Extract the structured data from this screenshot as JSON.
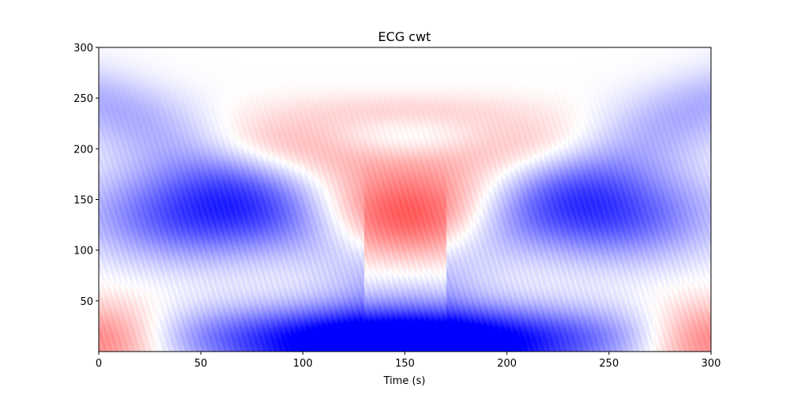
{
  "chart_data": {
    "type": "heatmap",
    "title": "ECG cwt",
    "xlabel": "Time (s)",
    "ylabel": "",
    "xlim": [
      0,
      300
    ],
    "ylim": [
      0,
      300
    ],
    "x_ticks": [
      0,
      50,
      100,
      150,
      200,
      250,
      300
    ],
    "x_tick_labels": [
      "0",
      "50",
      "100",
      "150",
      "200",
      "250",
      "300"
    ],
    "y_ticks": [
      50,
      100,
      150,
      200,
      250,
      300
    ],
    "y_tick_labels": [
      "50",
      "100",
      "150",
      "200",
      "250",
      "300"
    ],
    "colormap": "bwr",
    "colors": {
      "negative": "#0000ff",
      "zero": "#ffffff",
      "positive": "#ff0000"
    },
    "features": [
      {
        "sign": "negative",
        "t": 50,
        "scale": 135,
        "value": -0.75
      },
      {
        "sign": "positive",
        "t": 150,
        "scale": 135,
        "value": 0.7
      },
      {
        "sign": "negative",
        "t": 250,
        "scale": 135,
        "value": -0.7
      },
      {
        "sign": "negative",
        "t": 150,
        "scale": 5,
        "value": -1.0
      },
      {
        "sign": "positive",
        "t": 5,
        "scale": 15,
        "value": 0.45
      },
      {
        "sign": "positive",
        "t": 295,
        "scale": 15,
        "value": 0.45
      },
      {
        "sign": "positive",
        "t": 95,
        "scale": 205,
        "value": 0.3
      },
      {
        "sign": "positive",
        "t": 205,
        "scale": 205,
        "value": 0.25
      },
      {
        "sign": "negative",
        "t": 150,
        "scale": 210,
        "value": -0.25
      },
      {
        "sign": "positive",
        "t": 150,
        "scale": 240,
        "value": 0.12
      }
    ]
  }
}
